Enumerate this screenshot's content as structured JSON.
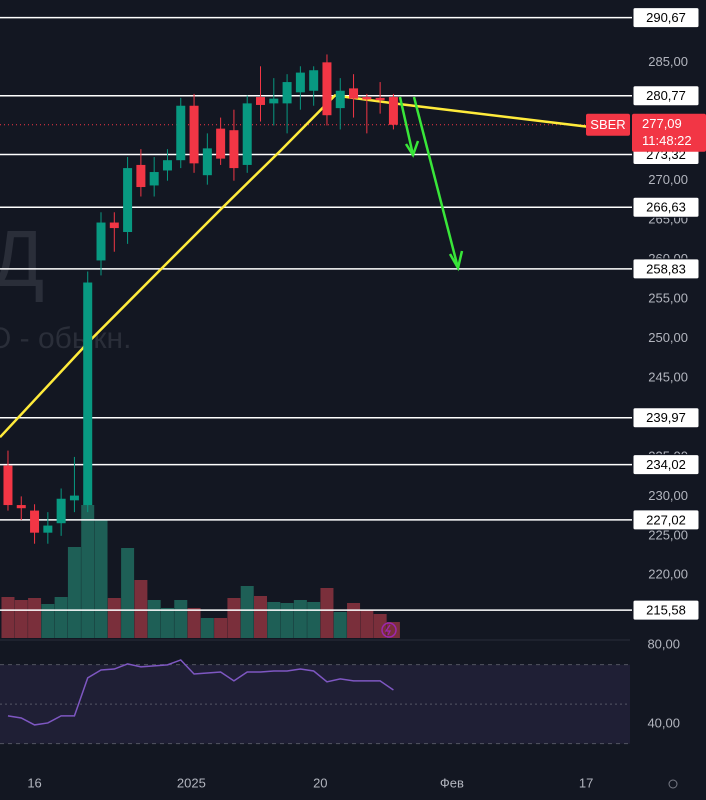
{
  "chart_data": {
    "type": "candlestick",
    "symbol": "SBER",
    "last_price": {
      "value": 277.09,
      "label": "277,09"
    },
    "countdown": "11:48:22",
    "watermark": [
      "Д",
      "О - обыкн."
    ],
    "xlim": [
      -0.6,
      46.8
    ],
    "xticks": [
      {
        "value": 2,
        "label": "16"
      },
      {
        "value": 13.8,
        "label": "2025"
      },
      {
        "value": 23.5,
        "label": "20"
      },
      {
        "value": 33.4,
        "label": "Фев"
      },
      {
        "value": 43.5,
        "label": "17"
      }
    ],
    "ylim": [
      211.8,
      292.9
    ],
    "yticks": [
      {
        "value": 285,
        "label": "285,00"
      },
      {
        "value": 270,
        "label": "270,00"
      },
      {
        "value": 265,
        "label": "265,00"
      },
      {
        "value": 260,
        "label": "260,00"
      },
      {
        "value": 255,
        "label": "255,00"
      },
      {
        "value": 250,
        "label": "250,00"
      },
      {
        "value": 245,
        "label": "245,00"
      },
      {
        "value": 235,
        "label": "235,00"
      },
      {
        "value": 230,
        "label": "230,00"
      },
      {
        "value": 225,
        "label": "225,00"
      },
      {
        "value": 220,
        "label": "220,00"
      }
    ],
    "levels": [
      {
        "value": 290.67,
        "label": "290,67"
      },
      {
        "value": 280.77,
        "label": "280,77"
      },
      {
        "value": 273.32,
        "label": "273,32"
      },
      {
        "value": 266.63,
        "label": "266,63"
      },
      {
        "value": 258.83,
        "label": "258,83"
      },
      {
        "value": 239.97,
        "label": "239,97"
      },
      {
        "value": 234.02,
        "label": "234,02"
      },
      {
        "value": 227.02,
        "label": "227,02"
      },
      {
        "value": 215.58,
        "label": "215,58"
      }
    ],
    "colors": {
      "up": "#089981",
      "down": "#f23645",
      "up_volume": "#1e5f56",
      "down_volume": "#7a2f3b",
      "level": "#ffffff"
    },
    "candles": {
      "open": [
        233.9,
        228.9,
        228.2,
        225.4,
        226.6,
        229.5,
        228.9,
        259.9,
        264.7,
        263.5,
        272.0,
        269.4,
        271.3,
        272.6,
        279.5,
        270.7,
        276.6,
        276.4,
        272.0,
        280.6,
        279.8,
        279.8,
        281.2,
        281.4,
        285.0,
        279.2,
        281.7,
        280.6,
        280.5,
        280.6
      ],
      "high": [
        235.8,
        230.0,
        229.0,
        228.0,
        231.0,
        235.0,
        258.5,
        266.0,
        266.0,
        273.0,
        274.0,
        273.0,
        274.0,
        280.5,
        281.0,
        276.0,
        278.0,
        279.0,
        280.8,
        284.5,
        283.0,
        283.5,
        284.5,
        284.5,
        286.0,
        283.0,
        283.5,
        281.0,
        282.5,
        281.0
      ],
      "low": [
        228.2,
        227.0,
        224.0,
        224.0,
        225.0,
        228.0,
        228.0,
        258.0,
        261.0,
        262.0,
        268.0,
        268.0,
        270.0,
        271.6,
        271.0,
        269.5,
        272.0,
        270.0,
        271.0,
        277.5,
        277.0,
        276.0,
        279.0,
        279.5,
        277.0,
        276.5,
        278.0,
        276.0,
        278.5,
        276.5
      ],
      "close": [
        228.9,
        228.5,
        225.4,
        226.3,
        229.7,
        230.1,
        257.1,
        264.7,
        264.0,
        271.6,
        269.2,
        271.1,
        272.6,
        279.5,
        272.2,
        274.1,
        272.8,
        271.6,
        279.8,
        279.6,
        280.4,
        282.5,
        283.7,
        284.0,
        278.3,
        281.4,
        280.4,
        280.3,
        280.2,
        277.09
      ]
    },
    "volume": {
      "ylim": [
        0,
        200
      ],
      "values": [
        41,
        38,
        40,
        34,
        41,
        91,
        133,
        118,
        40,
        90,
        58,
        38,
        30,
        38,
        30,
        20,
        20,
        40,
        52,
        42,
        36,
        35,
        38,
        36,
        50,
        26,
        35,
        28,
        24,
        16
      ]
    },
    "ma": {
      "color": "#ffeb3b",
      "x": [
        -0.6,
        6.2,
        11.4,
        15.9,
        20.5,
        24.6,
        29.5,
        43.8
      ],
      "values": [
        237.5,
        249.8,
        258.6,
        266.2,
        273.8,
        280.8,
        279.7,
        276.8
      ]
    },
    "rsi": {
      "color": "#7e57c2",
      "ylim": [
        19.2,
        82.5
      ],
      "yticks": [
        {
          "value": 80,
          "label": "80,00"
        },
        {
          "value": 40,
          "label": "40,00"
        }
      ],
      "bands": [
        30,
        50,
        70
      ],
      "values": [
        44.1,
        43.0,
        39.5,
        40.5,
        44.1,
        44.1,
        63.3,
        67.3,
        67.8,
        70.4,
        68.9,
        69.4,
        69.9,
        72.4,
        65.3,
        65.8,
        66.3,
        61.8,
        66.3,
        66.3,
        66.8,
        66.8,
        67.8,
        66.8,
        61.3,
        62.8,
        61.8,
        61.8,
        61.8,
        57.2
      ]
    }
  }
}
